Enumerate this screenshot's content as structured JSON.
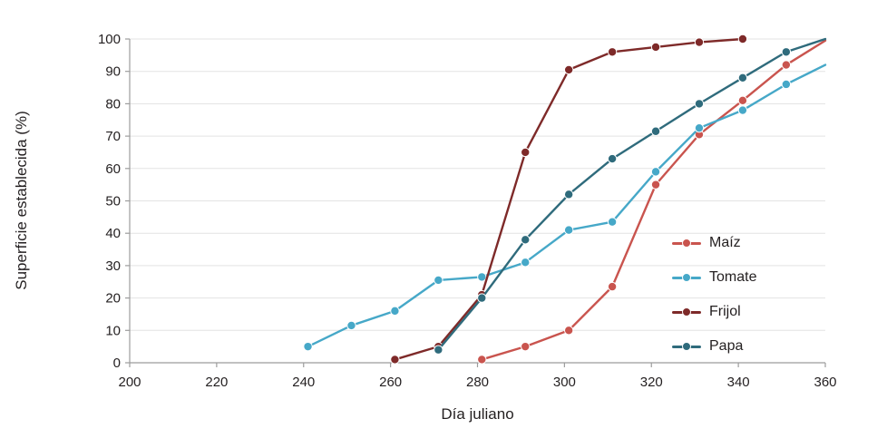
{
  "chart_data": {
    "type": "line",
    "title": "",
    "xlabel": "Día juliano",
    "ylabel": "Superficie establecida (%)",
    "xlim": [
      200,
      360
    ],
    "ylim": [
      0,
      100
    ],
    "xticks": [
      200,
      220,
      240,
      260,
      280,
      300,
      320,
      340,
      360
    ],
    "yticks": [
      0,
      10,
      20,
      30,
      40,
      50,
      60,
      70,
      80,
      90,
      100
    ],
    "grid": "horizontal",
    "legend_position": "right-center",
    "series": [
      {
        "name": "Maíz",
        "color": "#c9544e",
        "points": [
          [
            281,
            1
          ],
          [
            291,
            5
          ],
          [
            301,
            10
          ],
          [
            311,
            23.5
          ],
          [
            321,
            55
          ],
          [
            331,
            70.5
          ],
          [
            341,
            81
          ],
          [
            351,
            92
          ]
        ],
        "line_to": [
          360,
          99.5
        ]
      },
      {
        "name": "Tomate",
        "color": "#46a8c8",
        "points": [
          [
            241,
            5
          ],
          [
            251,
            11.5
          ],
          [
            261,
            16
          ],
          [
            271,
            25.5
          ],
          [
            281,
            26.5
          ],
          [
            291,
            31
          ],
          [
            301,
            41
          ],
          [
            311,
            43.5
          ],
          [
            321,
            59
          ],
          [
            331,
            72.5
          ],
          [
            341,
            78
          ],
          [
            351,
            86
          ]
        ],
        "line_to": [
          360,
          92
        ]
      },
      {
        "name": "Frijol",
        "color": "#7e2a29",
        "points": [
          [
            261,
            1
          ],
          [
            271,
            5
          ],
          [
            281,
            21
          ],
          [
            291,
            65
          ],
          [
            301,
            90.5
          ],
          [
            311,
            96
          ],
          [
            321,
            97.5
          ],
          [
            331,
            99
          ],
          [
            341,
            100
          ]
        ],
        "line_to": null
      },
      {
        "name": "Papa",
        "color": "#2f6b7c",
        "points": [
          [
            271,
            4
          ],
          [
            281,
            20
          ],
          [
            291,
            38
          ],
          [
            301,
            52
          ],
          [
            311,
            63
          ],
          [
            321,
            71.5
          ],
          [
            331,
            80
          ],
          [
            341,
            88
          ],
          [
            351,
            96
          ]
        ],
        "line_to": [
          360,
          100
        ]
      }
    ]
  }
}
